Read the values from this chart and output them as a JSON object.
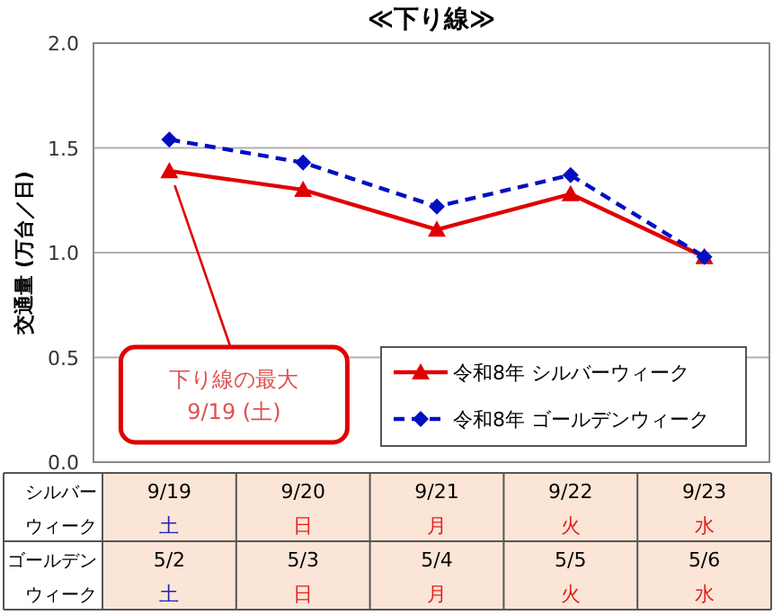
{
  "chart_data": {
    "type": "line",
    "title": "≪下り線≫",
    "ylabel": "交通量 (万台／日)",
    "categories": [
      "9/19",
      "9/20",
      "9/21",
      "9/22",
      "9/23"
    ],
    "series": [
      {
        "name": "令和8年 シルバーウィーク",
        "color": "#e00000",
        "marker": "triangle",
        "line_style": "solid",
        "values": [
          1.39,
          1.3,
          1.11,
          1.28,
          0.98
        ]
      },
      {
        "name": "令和8年 ゴールデンウィーク",
        "color": "#0010c0",
        "marker": "diamond",
        "line_style": "dashed",
        "values": [
          1.54,
          1.43,
          1.22,
          1.37,
          0.98
        ]
      }
    ],
    "ylim": [
      0,
      2.0
    ],
    "yticks": [
      {
        "value": 0,
        "label": "0.0"
      },
      {
        "value": 0.5,
        "label": "0.5"
      },
      {
        "value": 1.0,
        "label": "1.0"
      },
      {
        "value": 1.5,
        "label": "1.5"
      },
      {
        "value": 2.0,
        "label": "2.0"
      }
    ],
    "grid": "y",
    "legend": "bottom right",
    "annotations": [
      {
        "text": "下り線の最大 9/19 (土)",
        "x": "9/19",
        "y": 1.39
      },
      "シルバーウィーク",
      "土",
      "日",
      "月",
      "火",
      "水",
      "ゴールデンウィーク",
      "5/2",
      "5/3",
      "5/4",
      "5/5",
      "5/6",
      "土",
      "日",
      "月",
      "火",
      "水"
    ]
  }
}
